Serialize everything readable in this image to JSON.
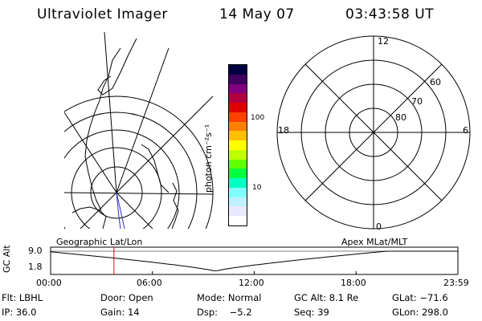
{
  "header": {
    "instrument": "Ultraviolet Imager",
    "date": "14 May 07",
    "time": "03:43:58 UT"
  },
  "geo_panel": {
    "label": "Geographic Lat/Lon"
  },
  "polar_panel": {
    "label": "Apex MLat/MLT",
    "mlt_labels": [
      "12",
      "18",
      "6",
      "0"
    ],
    "mlat_labels": [
      "60",
      "70",
      "80"
    ]
  },
  "colorbar": {
    "unit_label": "photon cm⁻²s⁻¹",
    "tick_labels": [
      "100",
      "10"
    ],
    "colors": [
      "#000040",
      "#400060",
      "#800080",
      "#b00040",
      "#e00000",
      "#ff4000",
      "#ff8000",
      "#ffc000",
      "#ffff00",
      "#c0ff00",
      "#60ff00",
      "#00ff40",
      "#00ffc0",
      "#80ffff",
      "#c0f0ff",
      "#e8e8ff",
      "#ffffff"
    ]
  },
  "altitude_plot": {
    "ylabel": "GC Alt",
    "yticks": [
      "9.0",
      "1.8"
    ],
    "xticks": [
      "00:00",
      "06:00",
      "12:00",
      "18:00",
      "23:59"
    ],
    "current_time_marker": "03:43:58",
    "marker_color": "#ff0000"
  },
  "info": {
    "row1": {
      "flt": "Flt: LBHL",
      "door": "Door: Open",
      "mode": "Mode: Normal",
      "gcalt": "GC Alt: 8.1 Re",
      "glat": "GLat: −71.6"
    },
    "row2": {
      "ip": "IP: 36.0",
      "gain": "Gain: 14",
      "dsp": "Dsp:    −5.2",
      "seq": "Seq: 39",
      "glon": "GLon: 298.0"
    }
  }
}
